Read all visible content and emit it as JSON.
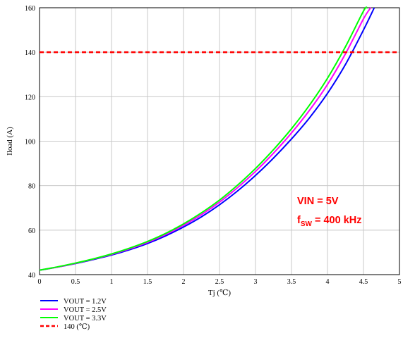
{
  "chart_data": {
    "type": "line",
    "title": "",
    "xlabel": "Tj (℃)",
    "ylabel": "Iload (A)",
    "xlim": [
      0,
      5
    ],
    "ylim": [
      40,
      160
    ],
    "xticks": [
      "0",
      "0.5",
      "1",
      "1.5",
      "2",
      "2.5",
      "3",
      "3.5",
      "4",
      "4.5",
      "5"
    ],
    "yticks": [
      "40",
      "60",
      "80",
      "100",
      "120",
      "140",
      "160"
    ],
    "grid": true,
    "legend_position": "bottom-left",
    "series": [
      {
        "name": "VOUT = 1.2V",
        "color": "#0000ff",
        "style": "solid",
        "x": [
          0,
          0.25,
          0.5,
          0.75,
          1,
          1.25,
          1.5,
          1.75,
          2,
          2.25,
          2.5,
          2.75,
          3,
          3.25,
          3.5,
          3.75,
          4,
          4.25,
          4.5,
          4.65
        ],
        "y": [
          42.0,
          43.4,
          45.0,
          46.8,
          48.8,
          51.2,
          54.0,
          57.4,
          61.4,
          66.0,
          71.4,
          77.6,
          84.6,
          92.4,
          101.0,
          110.5,
          121.5,
          134.5,
          150.0,
          160.0
        ]
      },
      {
        "name": "VOUT = 2.5V",
        "color": "#ff00ff",
        "style": "solid",
        "x": [
          0,
          0.25,
          0.5,
          0.75,
          1,
          1.25,
          1.5,
          1.75,
          2,
          2.25,
          2.5,
          2.75,
          3,
          3.25,
          3.5,
          3.75,
          4,
          4.25,
          4.5,
          4.6
        ],
        "y": [
          42.0,
          43.4,
          45.1,
          47.0,
          49.1,
          51.6,
          54.5,
          58.0,
          62.2,
          67.0,
          72.6,
          79.1,
          86.4,
          94.6,
          103.7,
          113.9,
          125.5,
          139.3,
          155.0,
          160.0
        ]
      },
      {
        "name": "VOUT = 3.3V",
        "color": "#00ff00",
        "style": "solid",
        "x": [
          0,
          0.25,
          0.5,
          0.75,
          1,
          1.25,
          1.5,
          1.75,
          2,
          2.25,
          2.5,
          2.75,
          3,
          3.25,
          3.5,
          3.75,
          4,
          4.25,
          4.5,
          4.55
        ],
        "y": [
          42.0,
          43.5,
          45.2,
          47.1,
          49.3,
          51.9,
          54.9,
          58.5,
          62.8,
          67.8,
          73.5,
          80.2,
          87.7,
          96.2,
          105.6,
          116.2,
          128.3,
          142.5,
          158.5,
          160.0
        ]
      },
      {
        "name": "140 (℃)",
        "color": "#ff0000",
        "style": "dashed",
        "x": [
          0,
          5
        ],
        "y": [
          140,
          140
        ]
      }
    ],
    "annotations": [
      {
        "text": "VIN = 5V",
        "color": "#ff0000"
      },
      {
        "text_main": "f",
        "text_sub": "SW",
        "text_rest": " = 400 kHz",
        "color": "#ff0000"
      }
    ]
  }
}
